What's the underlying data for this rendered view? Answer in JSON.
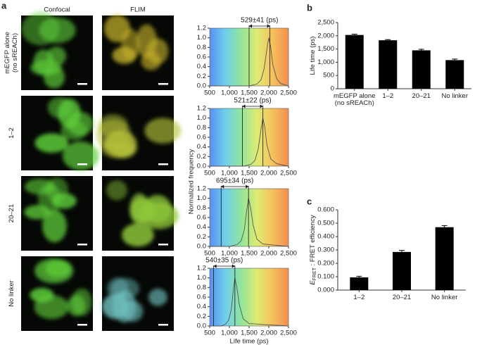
{
  "panel_labels": [
    "a",
    "b",
    "c"
  ],
  "column_headers": [
    "Confocal",
    "FLIM"
  ],
  "row_labels": [
    [
      "mEGFP alone",
      "(no sREACh)"
    ],
    [
      "1–2"
    ],
    [
      "20–21"
    ],
    [
      "No linker"
    ]
  ],
  "chart_data": [
    {
      "type": "line",
      "annotation": "529±41 (ps)",
      "markers": [
        1500,
        2029
      ],
      "x": [
        500,
        1500,
        1700,
        1800,
        1880,
        1950,
        2000,
        2050,
        2100,
        2200,
        2300,
        2500
      ],
      "values": [
        0,
        0,
        0.04,
        0.12,
        0.35,
        0.75,
        1.0,
        0.8,
        0.45,
        0.15,
        0.05,
        0
      ],
      "xlim": [
        500,
        2500
      ],
      "ylim": [
        0,
        1.2
      ],
      "xticks": [
        500,
        {
          "value": 1000,
          "label": "1,000"
        },
        {
          "value": 1500,
          "label": "1,500"
        },
        {
          "value": 2000,
          "label": "2,000"
        },
        {
          "value": 2500,
          "label": "2,500"
        }
      ],
      "yticks": [
        {
          "value": 0,
          "label": "0.0"
        },
        0.2,
        0.4,
        0.6,
        0.8,
        {
          "value": 1,
          "label": "1.0"
        },
        1.2
      ]
    },
    {
      "type": "line",
      "annotation": "521±22 (ps)",
      "markers": [
        1330,
        1851
      ],
      "ylabel": "Normalized frequency",
      "x": [
        500,
        1350,
        1550,
        1650,
        1730,
        1800,
        1850,
        1900,
        1950,
        2050,
        2200,
        2500
      ],
      "values": [
        0,
        0,
        0.04,
        0.12,
        0.35,
        0.75,
        1.0,
        0.8,
        0.45,
        0.15,
        0.05,
        0
      ],
      "xlim": [
        500,
        2500
      ],
      "ylim": [
        0,
        1.2
      ],
      "xticks": [
        500,
        {
          "value": 1000,
          "label": "1,000"
        },
        {
          "value": 1500,
          "label": "1,500"
        },
        {
          "value": 2000,
          "label": "2,000"
        },
        {
          "value": 2500,
          "label": "2,500"
        }
      ],
      "yticks": [
        {
          "value": 0,
          "label": "0.0"
        },
        0.2,
        0.4,
        0.6,
        0.8,
        {
          "value": 1,
          "label": "1.0"
        },
        1.2
      ]
    },
    {
      "type": "line",
      "annotation": "695±34 (ps)",
      "markers": [
        790,
        1485
      ],
      "x": [
        500,
        1000,
        1200,
        1300,
        1380,
        1440,
        1485,
        1540,
        1600,
        1700,
        1850,
        2500
      ],
      "values": [
        0,
        0,
        0.04,
        0.12,
        0.35,
        0.75,
        1.0,
        0.8,
        0.45,
        0.15,
        0.05,
        0
      ],
      "xlim": [
        500,
        2500
      ],
      "ylim": [
        0,
        1.2
      ],
      "xticks": [
        500,
        {
          "value": 1000,
          "label": "1,000"
        },
        {
          "value": 1500,
          "label": "1,500"
        },
        {
          "value": 2000,
          "label": "2,000"
        },
        {
          "value": 2500,
          "label": "2,500"
        }
      ],
      "yticks": [
        {
          "value": 0,
          "label": "0.0"
        },
        0.2,
        0.4,
        0.6,
        0.8,
        {
          "value": 1,
          "label": "1.0"
        },
        1.2
      ]
    },
    {
      "type": "line",
      "annotation": "540±35 (ps)",
      "markers": [
        600,
        1140
      ],
      "xlabel": "Life time (ps)",
      "x": [
        500,
        800,
        900,
        980,
        1050,
        1100,
        1140,
        1190,
        1250,
        1350,
        1500,
        2500
      ],
      "values": [
        0,
        0,
        0.04,
        0.12,
        0.35,
        0.75,
        1.0,
        0.8,
        0.45,
        0.15,
        0.05,
        0
      ],
      "xlim": [
        500,
        2500
      ],
      "ylim": [
        0,
        1.2
      ],
      "xticks": [
        500,
        {
          "value": 1000,
          "label": "1,000"
        },
        {
          "value": 1500,
          "label": "1,500"
        },
        {
          "value": 2000,
          "label": "2,000"
        },
        {
          "value": 2500,
          "label": "2,500"
        }
      ],
      "yticks": [
        {
          "value": 0,
          "label": "0.0"
        },
        0.2,
        0.4,
        0.6,
        0.8,
        {
          "value": 1,
          "label": "1.0"
        },
        1.2
      ]
    },
    {
      "type": "bar",
      "ylabel": [
        "Life time (ps)"
      ],
      "color": "#000000",
      "categories": [
        [
          "mEGFP alone",
          "(no sREACh)"
        ],
        [
          "1–2"
        ],
        [
          "20–21"
        ],
        [
          "No linker"
        ]
      ],
      "values": [
        2030,
        1830,
        1450,
        1080
      ],
      "errors": [
        30,
        25,
        40,
        40
      ],
      "ylim": [
        0,
        2500
      ],
      "yticks": [
        0,
        500,
        {
          "value": 1000,
          "label": "1,000"
        },
        {
          "value": 1500,
          "label": "1,500"
        },
        {
          "value": 2000,
          "label": "2,000"
        },
        {
          "value": 2500,
          "label": "2,500"
        }
      ]
    },
    {
      "type": "bar",
      "ylabel": [
        "E",
        "FRET",
        " : FRET efficiency"
      ],
      "color": "#000000",
      "categories": [
        [
          "1–2"
        ],
        [
          "20–21"
        ],
        [
          "No linker"
        ]
      ],
      "values": [
        0.095,
        0.285,
        0.47
      ],
      "errors": [
        0.008,
        0.012,
        0.012
      ],
      "ylim": [
        0,
        0.6
      ],
      "yticks": [
        {
          "value": 0,
          "label": "0.000"
        },
        {
          "value": 0.1,
          "label": "0.100"
        },
        {
          "value": 0.2,
          "label": "0.200"
        },
        {
          "value": 0.3,
          "label": "0.300"
        },
        {
          "value": 0.4,
          "label": "0.400"
        },
        {
          "value": 0.5,
          "label": "0.500"
        },
        {
          "value": 0.6,
          "label": "0.600"
        }
      ]
    }
  ]
}
